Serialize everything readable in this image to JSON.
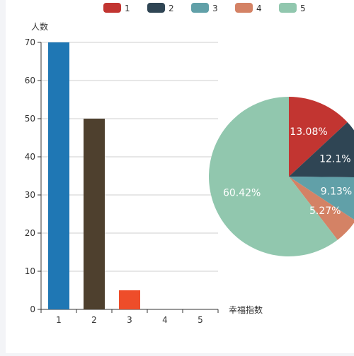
{
  "chart_data": [
    {
      "type": "bar",
      "ylabel": "人数",
      "xlabel": "幸福指数",
      "categories": [
        "1",
        "2",
        "3",
        "4",
        "5"
      ],
      "values": [
        70,
        50,
        5,
        0,
        0
      ],
      "ylim": [
        0,
        70
      ],
      "yticks": [
        0,
        10,
        20,
        30,
        40,
        50,
        60,
        70
      ],
      "bar_colors": [
        "#1f77b4",
        "#4e402e",
        "#ee4d2a",
        "#3c3c3c",
        "#3c3c3c"
      ],
      "grid": true
    },
    {
      "type": "pie",
      "legend_position": "top-center",
      "slices": [
        {
          "name": "1",
          "percent": 13.08,
          "label": "13.08%",
          "color": "#c23531"
        },
        {
          "name": "2",
          "percent": 12.1,
          "label": "12.1%",
          "color": "#2f4554"
        },
        {
          "name": "3",
          "percent": 9.13,
          "label": "9.13%",
          "color": "#61a0a8"
        },
        {
          "name": "4",
          "percent": 5.27,
          "label": "5.27%",
          "color": "#d48265"
        },
        {
          "name": "5",
          "percent": 60.42,
          "label": "60.42%",
          "color": "#91c7ae"
        }
      ]
    }
  ]
}
